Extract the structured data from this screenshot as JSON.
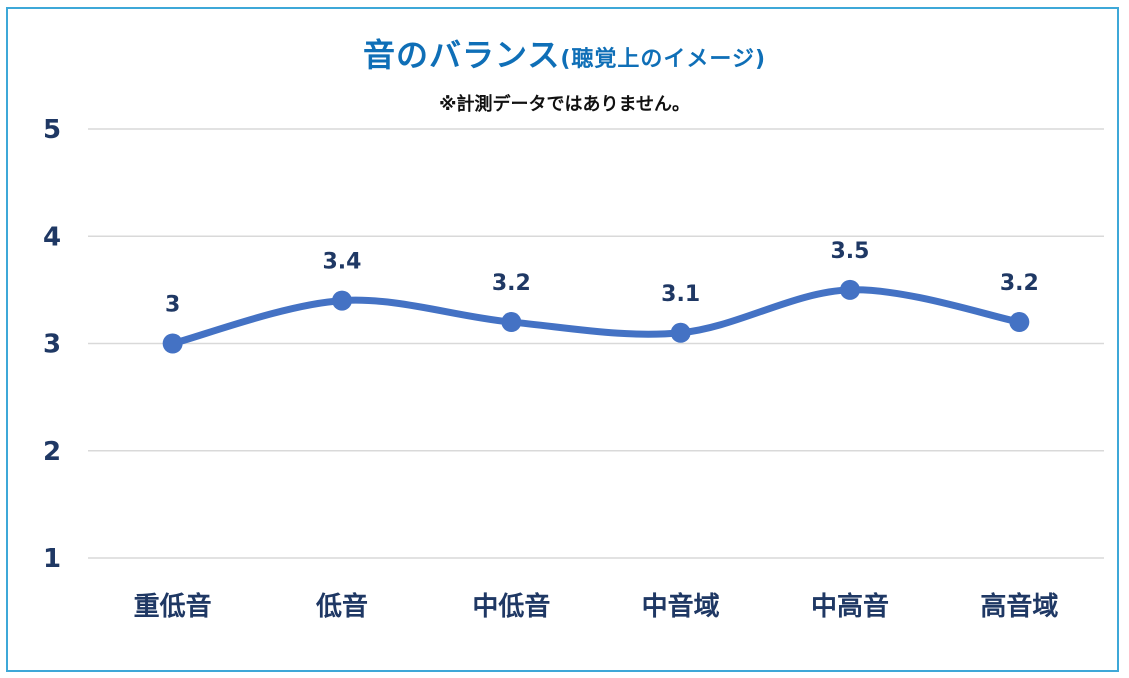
{
  "chart_data": {
    "type": "line",
    "title": "音のバランス",
    "title_suffix": "(聴覚上のイメージ)",
    "subtitle": "※計測データではありません。",
    "categories": [
      "重低音",
      "低音",
      "中低音",
      "中音域",
      "中高音",
      "高音域"
    ],
    "series": [
      {
        "values": [
          3,
          3.4,
          3.2,
          3.1,
          3.5,
          3.2
        ],
        "color": "#4472c4"
      }
    ],
    "data_labels": [
      "3",
      "3.4",
      "3.2",
      "3.1",
      "3.5",
      "3.2"
    ],
    "y_ticks": [
      "1",
      "2",
      "3",
      "4",
      "5"
    ],
    "ylim": [
      1,
      5
    ],
    "grid": true,
    "smooth": true,
    "legend": "none",
    "colors": {
      "title": "#0f6fb7",
      "frame": "#3ea8d8",
      "gridline": "#d9d9d9",
      "labels": "#1f3864"
    }
  }
}
